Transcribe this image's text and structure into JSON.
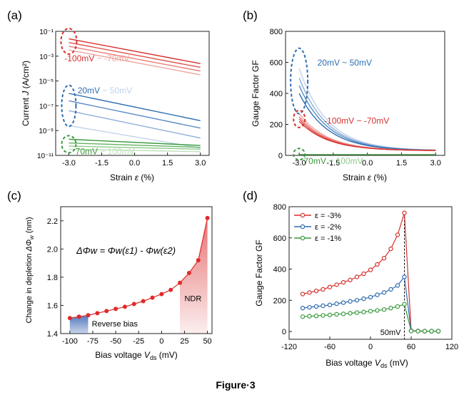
{
  "figure_caption": "Figure·3",
  "chart_data": [
    {
      "panel": "(a)",
      "type": "line",
      "xlabel": "Strain",
      "xlabel_sym": "ε",
      "xlabel_unit": "(%)",
      "ylabel": "Current",
      "ylabel_sym": "J",
      "ylabel_unit": "(A/cm²)",
      "y_scale": "log",
      "xlim": [
        -3.6,
        3.4
      ],
      "ylim_exp": [
        -11,
        -1
      ],
      "x_ticks": [
        "-3.0",
        "-1.5",
        "0.0",
        "1.5",
        "3.0"
      ],
      "y_ticks": [
        "10⁻¹¹",
        "10⁻⁹",
        "10⁻⁷",
        "10⁻⁵",
        "10⁻³",
        "10⁻¹"
      ],
      "groups": [
        {
          "label_a": "-100mV",
          "label_b": "~ -70mV",
          "color": "#d6312e",
          "lines": [
            {
              "log_start": -1.6,
              "log_end": -3.6,
              "color": "#d6312e"
            },
            {
              "log_start": -1.9,
              "log_end": -3.9,
              "color": "#de5450"
            },
            {
              "log_start": -2.2,
              "log_end": -4.2,
              "color": "#e77c78"
            },
            {
              "log_start": -2.5,
              "log_end": -4.5,
              "color": "#efa5a2"
            }
          ]
        },
        {
          "label_a": "20mV",
          "label_b": "~ 50mV",
          "color": "#2e6db0",
          "lines": [
            {
              "log_start": -6.0,
              "log_end": -8.2,
              "color": "#2e6db0"
            },
            {
              "log_start": -6.6,
              "log_end": -8.8,
              "color": "#5a8cc4"
            },
            {
              "log_start": -7.4,
              "log_end": -9.6,
              "color": "#8aaed7"
            },
            {
              "log_start": -8.6,
              "log_end": -10.4,
              "color": "#c0d3ea"
            }
          ]
        },
        {
          "label_a": "70mV",
          "label_b": "~ 100mV",
          "color": "#3a9a3d",
          "lines": [
            {
              "log_start": -9.7,
              "log_end": -10.2,
              "color": "#3a9a3d"
            },
            {
              "log_start": -10.0,
              "log_end": -10.35,
              "color": "#62b25f"
            },
            {
              "log_start": -10.25,
              "log_end": -10.5,
              "color": "#8ec98a"
            },
            {
              "log_start": -10.5,
              "log_end": -10.7,
              "color": "#bfe0ba"
            }
          ]
        }
      ]
    },
    {
      "panel": "(b)",
      "type": "line",
      "xlabel": "Strain",
      "xlabel_sym": "ε",
      "xlabel_unit": "(%)",
      "ylabel": "Gauge Factor GF",
      "xlim": [
        -3.6,
        3.4
      ],
      "ylim": [
        0,
        800
      ],
      "x_ticks": [
        "-3.0",
        "-1.5",
        "0.0",
        "1.5",
        "3.0"
      ],
      "y_ticks": [
        "0",
        "200",
        "400",
        "600",
        "800"
      ],
      "groups": [
        {
          "label_a": "20mV",
          "label_b": "~ 50mV",
          "color": "#2e6db0",
          "lines": [
            {
              "start": 560,
              "color": "#c0d3ea"
            },
            {
              "start": 500,
              "color": "#8aaed7"
            },
            {
              "start": 450,
              "color": "#5a8cc4"
            },
            {
              "start": 400,
              "color": "#2e6db0"
            }
          ]
        },
        {
          "label_a": "-100mV",
          "label_b": "~ -70mV",
          "color": "#d6312e",
          "lines": [
            {
              "start": 270,
              "color": "#efa5a2"
            },
            {
              "start": 250,
              "color": "#e77c78"
            },
            {
              "start": 235,
              "color": "#de5450"
            },
            {
              "start": 220,
              "color": "#d6312e"
            }
          ]
        },
        {
          "label_a": "70mV",
          "label_b": "~ 100mV",
          "color": "#3a9a3d",
          "lines": [
            {
              "start": 5,
              "color": "#3a9a3d"
            }
          ]
        }
      ],
      "end_value": 30
    },
    {
      "panel": "(c)",
      "type": "line",
      "xlabel": "Bias voltage",
      "xlabel_sym": "V",
      "xlabel_sub": "ds",
      "xlabel_unit": "(mV)",
      "ylabel": "Change in depletion",
      "ylabel_sym": "ΔΦ",
      "ylabel_sub": "w",
      "ylabel_unit": "(nm)",
      "xlim": [
        -110,
        55
      ],
      "ylim": [
        1.4,
        2.3
      ],
      "x_ticks": [
        "-100",
        "-75",
        "-50",
        "-25",
        "0",
        "25",
        "50"
      ],
      "y_ticks": [
        "1.4",
        "1.6",
        "1.8",
        "2.0",
        "2.2"
      ],
      "equation": "ΔΦw = Φw(ε1) - Φw(ε2)",
      "region_reverse": {
        "label": "Reverse bias",
        "x_range": [
          -100,
          -80
        ],
        "color": "#4b72b8"
      },
      "region_ndr": {
        "label": "NDR",
        "x_range": [
          20,
          50
        ],
        "color": "#e15a5a"
      },
      "color": "#e02a2a",
      "x": [
        -100,
        -90,
        -80,
        -70,
        -60,
        -50,
        -40,
        -30,
        -20,
        -10,
        0,
        10,
        20,
        30,
        40,
        50
      ],
      "y": [
        1.51,
        1.52,
        1.53,
        1.545,
        1.56,
        1.575,
        1.59,
        1.61,
        1.63,
        1.655,
        1.68,
        1.71,
        1.76,
        1.83,
        1.92,
        2.22
      ]
    },
    {
      "panel": "(d)",
      "type": "line",
      "xlabel": "Bias voltage",
      "xlabel_sym": "V",
      "xlabel_sub": "ds",
      "xlabel_unit": "(mV)",
      "ylabel": "Gauge Factor GF",
      "xlim": [
        -120,
        120
      ],
      "ylim": [
        -50,
        800
      ],
      "x_ticks": [
        "-120",
        "-60",
        "0",
        "60",
        "120"
      ],
      "y_ticks": [
        "0",
        "200",
        "400",
        "600",
        "800"
      ],
      "annotation": "50mV",
      "x": [
        -100,
        -90,
        -80,
        -70,
        -60,
        -50,
        -40,
        -30,
        -20,
        -10,
        0,
        10,
        20,
        30,
        40,
        50,
        60,
        70,
        80,
        90,
        100
      ],
      "series": [
        {
          "name": "ε = -3%",
          "color": "#d6312e",
          "values": [
            240,
            250,
            260,
            270,
            285,
            300,
            315,
            330,
            350,
            370,
            395,
            430,
            470,
            530,
            620,
            760,
            5,
            3,
            2,
            2,
            2
          ]
        },
        {
          "name": "ε = -2%",
          "color": "#2e6db0",
          "values": [
            150,
            155,
            160,
            165,
            170,
            178,
            185,
            193,
            200,
            210,
            220,
            235,
            250,
            270,
            295,
            350,
            4,
            3,
            2,
            2,
            2
          ]
        },
        {
          "name": "ε = -1%",
          "color": "#3a9a3d",
          "values": [
            95,
            98,
            100,
            103,
            106,
            110,
            113,
            117,
            121,
            125,
            130,
            135,
            141,
            150,
            160,
            175,
            3,
            2,
            2,
            2,
            2
          ]
        }
      ]
    }
  ]
}
